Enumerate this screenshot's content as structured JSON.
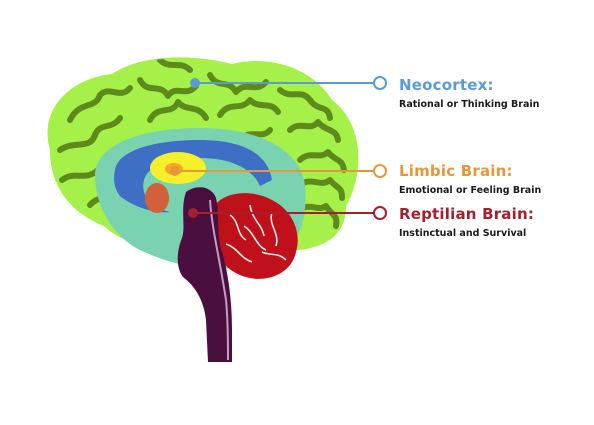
{
  "labels": {
    "neocortex": {
      "title": "Neocortex:",
      "subtitle": "Rational or Thinking Brain",
      "color": "#5b9bd5"
    },
    "limbic": {
      "title": "Limbic Brain:",
      "subtitle": "Emotional or Feeling Brain",
      "color": "#e8963a"
    },
    "reptilian": {
      "title": "Reptilian Brain:",
      "subtitle": "Instinctual and Survival",
      "color": "#a3202f"
    }
  },
  "colors": {
    "cortex_fill": "#a6f04a",
    "cortex_fold": "#5e8a1c",
    "limbic_outer": "#79d3b0",
    "limbic_blue": "#3f6fc4",
    "limbic_yellow": "#f6f02a",
    "amygdala": "#d2603a",
    "brainstem": "#4a0f3e",
    "cerebellum": "#c0101a"
  }
}
